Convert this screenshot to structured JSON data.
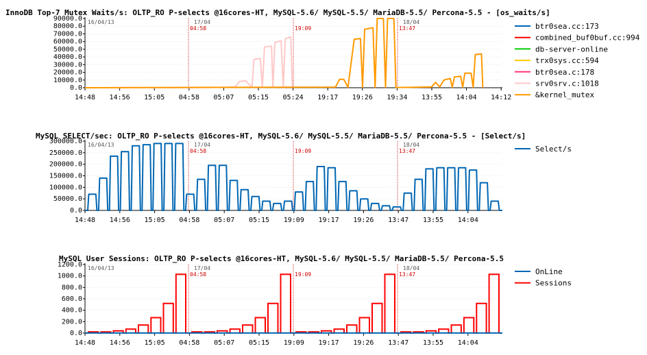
{
  "chart_data": [
    {
      "type": "line",
      "title": "InnoDB Top-7 Mutex Waits/s: OLTP_RO P-selects @16cores-HT, MySQL-5.6/ MySQL-5.5/ MariaDB-5.5/ Percona-5.5 - [os_waits/s]",
      "ylim": [
        0,
        90000
      ],
      "y_ticks": [
        "0.0",
        "10000.0",
        "20000.0",
        "30000.0",
        "40000.0",
        "50000.0",
        "60000.0",
        "70000.0",
        "80000.0",
        "90000.0"
      ],
      "x_ticks": [
        "14:48",
        "14:56",
        "15:05",
        "04:58",
        "05:07",
        "05:15",
        "05:24",
        "19:17",
        "19:26",
        "19:34",
        "13:55",
        "14:04",
        "14:12"
      ],
      "dates": [
        "16/04/13",
        "17/04",
        "18/04"
      ],
      "markers": [
        "04:58",
        "19:09",
        "13:47"
      ],
      "legend": [
        {
          "name": "btr0sea.cc:173",
          "color": "#0066b3"
        },
        {
          "name": "combined_buf0buf.cc:994",
          "color": "#ff0000"
        },
        {
          "name": "db-server-online",
          "color": "#00cc00"
        },
        {
          "name": "trx0sys.cc:594",
          "color": "#ffcc00"
        },
        {
          "name": "btr0sea.c:178",
          "color": "#ff3377"
        },
        {
          "name": "srv0srv.c:1018",
          "color": "#ffc8c8"
        },
        {
          "name": "&kernel_mutex",
          "color": "#ff9900"
        }
      ],
      "series": [
        {
          "name": "srv0srv.c:1018",
          "color": "#ffc8c8",
          "points": [
            [
              0.05,
              0
            ],
            [
              0.1,
              0
            ],
            [
              0.17,
              0
            ],
            [
              0.25,
              0
            ],
            [
              0.33,
              500
            ],
            [
              0.36,
              1000
            ],
            [
              0.37,
              8000
            ],
            [
              0.385,
              9000
            ],
            [
              0.4,
              400
            ],
            [
              0.405,
              37000
            ],
            [
              0.42,
              38000
            ],
            [
              0.425,
              300
            ],
            [
              0.43,
              53000
            ],
            [
              0.447,
              54000
            ],
            [
              0.45,
              300
            ],
            [
              0.455,
              59000
            ],
            [
              0.47,
              61000
            ],
            [
              0.475,
              300
            ],
            [
              0.48,
              64000
            ],
            [
              0.493,
              66000
            ],
            [
              0.497,
              200
            ]
          ]
        },
        {
          "name": "&kernel_mutex",
          "color": "#ff9900",
          "points": [
            [
              0,
              0
            ],
            [
              0.6,
              800
            ],
            [
              0.61,
              11000
            ],
            [
              0.62,
              11000
            ],
            [
              0.63,
              500
            ],
            [
              0.645,
              63000
            ],
            [
              0.66,
              64000
            ],
            [
              0.665,
              500
            ],
            [
              0.67,
              76000
            ],
            [
              0.69,
              78000
            ],
            [
              0.695,
              500
            ],
            [
              0.7,
              90000
            ],
            [
              0.715,
              90000
            ],
            [
              0.72,
              500
            ],
            [
              0.725,
              90000
            ],
            [
              0.74,
              90000
            ],
            [
              0.745,
              300
            ],
            [
              0.83,
              1000
            ],
            [
              0.84,
              7000
            ],
            [
              0.85,
              1000
            ],
            [
              0.86,
              10000
            ],
            [
              0.875,
              12000
            ],
            [
              0.88,
              500
            ],
            [
              0.885,
              14000
            ],
            [
              0.9,
              15000
            ],
            [
              0.905,
              500
            ],
            [
              0.91,
              19000
            ],
            [
              0.925,
              19000
            ],
            [
              0.93,
              500
            ],
            [
              0.935,
              43000
            ],
            [
              0.95,
              44000
            ],
            [
              0.953,
              0
            ]
          ]
        }
      ]
    },
    {
      "type": "line",
      "title": "MySQL SELECT/sec: OLTP_RO P-selects @16cores-HT, MySQL-5.6/ MySQL-5.5/ MariaDB-5.5/ Percona-5.5 - [Select/s]",
      "ylim": [
        0,
        300000
      ],
      "y_ticks": [
        "0.0",
        "50000.0",
        "100000.0",
        "150000.0",
        "200000.0",
        "250000.0",
        "300000.0"
      ],
      "x_ticks": [
        "14:48",
        "14:56",
        "15:05",
        "04:58",
        "05:07",
        "05:15",
        "19:09",
        "19:17",
        "19:26",
        "13:47",
        "13:55",
        "14:04"
      ],
      "dates": [
        "16/04/13",
        "17/04",
        "18/04"
      ],
      "markers": [
        "04:58",
        "19:09",
        "13:47"
      ],
      "legend": [
        {
          "name": "Select/s",
          "color": "#0066b3"
        }
      ],
      "series": [
        {
          "name": "Select/s",
          "color": "#0066b3",
          "heights": [
            70000,
            140000,
            235000,
            255000,
            280000,
            285000,
            290000,
            290000,
            290000,
            70000,
            135000,
            195000,
            195000,
            130000,
            90000,
            60000,
            40000,
            30000,
            40000,
            80000,
            125000,
            190000,
            185000,
            125000,
            85000,
            50000,
            30000,
            20000,
            15000,
            75000,
            135000,
            180000,
            185000,
            185000,
            185000,
            175000,
            120000,
            40000
          ]
        }
      ]
    },
    {
      "type": "line",
      "title": "MySQL User Sessions: OLTP_RO P-selects @16cores-HT, MySQL-5.6/ MySQL-5.5/ MariaDB-5.5/ Percona-5.5",
      "ylim": [
        0,
        1200
      ],
      "y_ticks": [
        "0.0",
        "200.0",
        "400.0",
        "600.0",
        "800.0",
        "1000.0",
        "1200.0"
      ],
      "x_ticks": [
        "14:48",
        "14:56",
        "15:05",
        "04:58",
        "05:07",
        "05:15",
        "19:09",
        "19:17",
        "19:26",
        "13:47",
        "13:55",
        "14:04"
      ],
      "dates": [
        "16/04/13",
        "17/04",
        "18/04"
      ],
      "markers": [
        "04:58",
        "19:09",
        "13:47"
      ],
      "legend": [
        {
          "name": "OnLine",
          "color": "#0066b3"
        },
        {
          "name": "Sessions",
          "color": "#ff0000"
        }
      ],
      "series": [
        {
          "name": "Sessions",
          "color": "#ff0000",
          "heights": [
            20,
            20,
            40,
            70,
            140,
            270,
            520,
            1030
          ]
        },
        {
          "name": "OnLine",
          "color": "#0066b3",
          "heights": [
            2
          ]
        }
      ]
    }
  ]
}
